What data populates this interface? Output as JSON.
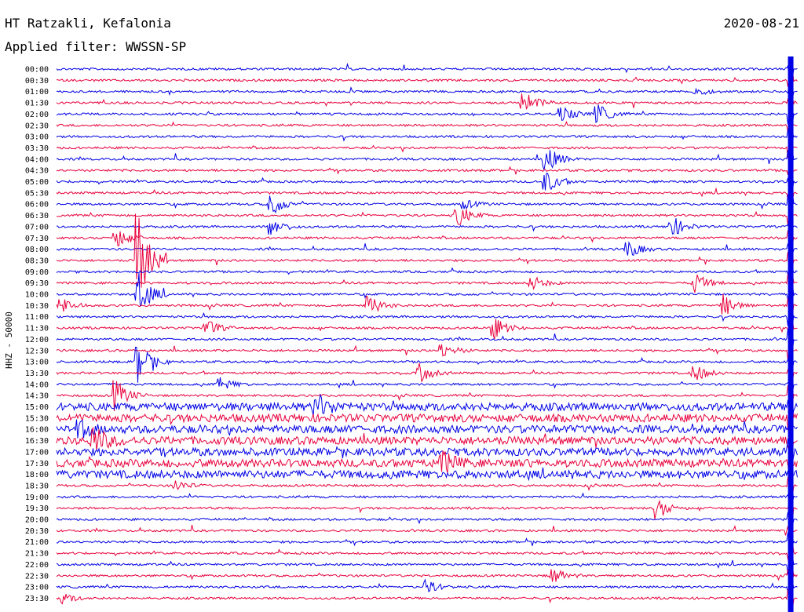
{
  "header": {
    "station": "HT Ratzakli, Kefalonia",
    "filter_label": "Applied filter: WWSSN-SP",
    "date": "2020-08-21"
  },
  "chart_data": {
    "type": "line",
    "ylabel": "HHZ - 50000",
    "rows": [
      "00:00",
      "00:30",
      "01:00",
      "01:30",
      "02:00",
      "02:30",
      "03:00",
      "03:30",
      "04:00",
      "04:30",
      "05:00",
      "05:30",
      "06:00",
      "06:30",
      "07:00",
      "07:30",
      "08:00",
      "08:30",
      "09:00",
      "09:30",
      "10:00",
      "10:30",
      "11:00",
      "11:30",
      "12:00",
      "12:30",
      "13:00",
      "13:30",
      "14:00",
      "14:30",
      "15:00",
      "15:30",
      "16:00",
      "16:30",
      "17:00",
      "17:30",
      "18:00",
      "18:30",
      "19:00",
      "19:30",
      "20:00",
      "20:30",
      "21:00",
      "21:30",
      "22:00",
      "22:30",
      "23:00",
      "23:30"
    ],
    "series_colors": [
      "#0000e6",
      "#e8003c"
    ],
    "grid": false,
    "events": [
      {
        "row": 2,
        "x": 0.86,
        "amp": 6
      },
      {
        "row": 3,
        "x": 0.63,
        "amp": 16
      },
      {
        "row": 4,
        "x": 0.68,
        "amp": 10
      },
      {
        "row": 4,
        "x": 0.73,
        "amp": 12
      },
      {
        "row": 8,
        "x": 0.66,
        "amp": 18
      },
      {
        "row": 10,
        "x": 0.66,
        "amp": 14
      },
      {
        "row": 12,
        "x": 0.29,
        "amp": 14
      },
      {
        "row": 12,
        "x": 0.55,
        "amp": 6
      },
      {
        "row": 13,
        "x": 0.54,
        "amp": 16
      },
      {
        "row": 14,
        "x": 0.29,
        "amp": 12
      },
      {
        "row": 14,
        "x": 0.83,
        "amp": 14
      },
      {
        "row": 15,
        "x": 0.08,
        "amp": 14
      },
      {
        "row": 16,
        "x": 0.77,
        "amp": 12
      },
      {
        "row": 17,
        "x": 0.11,
        "amp": 60
      },
      {
        "row": 19,
        "x": 0.64,
        "amp": 10
      },
      {
        "row": 19,
        "x": 0.86,
        "amp": 14
      },
      {
        "row": 20,
        "x": 0.11,
        "amp": 28
      },
      {
        "row": 21,
        "x": 0.0,
        "amp": 16
      },
      {
        "row": 21,
        "x": 0.42,
        "amp": 14
      },
      {
        "row": 21,
        "x": 0.9,
        "amp": 14
      },
      {
        "row": 23,
        "x": 0.2,
        "amp": 12
      },
      {
        "row": 23,
        "x": 0.59,
        "amp": 14
      },
      {
        "row": 25,
        "x": 0.52,
        "amp": 10
      },
      {
        "row": 26,
        "x": 0.11,
        "amp": 30
      },
      {
        "row": 27,
        "x": 0.49,
        "amp": 12
      },
      {
        "row": 27,
        "x": 0.86,
        "amp": 12
      },
      {
        "row": 28,
        "x": 0.22,
        "amp": 8
      },
      {
        "row": 29,
        "x": 0.08,
        "amp": 20
      },
      {
        "row": 30,
        "x": 0.35,
        "amp": 16
      },
      {
        "row": 32,
        "x": 0.03,
        "amp": 10
      },
      {
        "row": 33,
        "x": 0.05,
        "amp": 18
      },
      {
        "row": 35,
        "x": 0.52,
        "amp": 14
      },
      {
        "row": 37,
        "x": 0.16,
        "amp": 8
      },
      {
        "row": 39,
        "x": 0.81,
        "amp": 14
      },
      {
        "row": 45,
        "x": 0.67,
        "amp": 10
      },
      {
        "row": 46,
        "x": 0.5,
        "amp": 8
      },
      {
        "row": 47,
        "x": 0.01,
        "amp": 6
      }
    ],
    "active_rows": [
      30,
      31,
      32,
      33,
      34,
      35,
      36
    ],
    "saturated_x": 0.99
  }
}
